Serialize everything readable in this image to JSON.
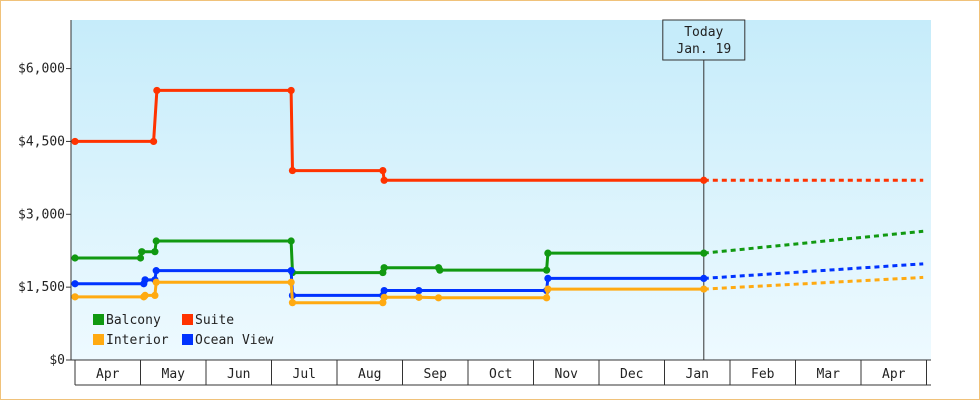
{
  "chart_data": {
    "type": "line",
    "title": "",
    "xlabel": "",
    "ylabel": "",
    "ylim": [
      0,
      7000
    ],
    "yticks": [
      {
        "value": 0,
        "label": "$0"
      },
      {
        "value": 1500,
        "label": "$1,500"
      },
      {
        "value": 3000,
        "label": "$3,000"
      },
      {
        "value": 4500,
        "label": "$4,500"
      },
      {
        "value": 6000,
        "label": "$6,000"
      }
    ],
    "month_labels": [
      "Apr",
      "May",
      "Jun",
      "Jul",
      "Aug",
      "Sep",
      "Oct",
      "Nov",
      "Dec",
      "Jan",
      "Feb",
      "Mar",
      "Apr"
    ],
    "today": {
      "line1": "Today",
      "line2": "Jan. 19",
      "x": 9.6
    },
    "legend": {
      "placement": "bottom-left"
    },
    "series": [
      {
        "name": "Suite",
        "color": "#ff3300",
        "points": [
          [
            0,
            4500
          ],
          [
            1.2,
            4500
          ],
          [
            1.25,
            5550
          ],
          [
            3.3,
            5550
          ],
          [
            3.32,
            3900
          ],
          [
            4.7,
            3900
          ],
          [
            4.72,
            3700
          ],
          [
            9.6,
            3700
          ]
        ],
        "forecast": [
          [
            9.6,
            3700
          ],
          [
            12.95,
            3700
          ]
        ]
      },
      {
        "name": "Balcony",
        "color": "#119911",
        "points": [
          [
            0,
            2100
          ],
          [
            1.0,
            2100
          ],
          [
            1.02,
            2230
          ],
          [
            1.22,
            2230
          ],
          [
            1.24,
            2450
          ],
          [
            3.3,
            2450
          ],
          [
            3.32,
            1800
          ],
          [
            4.7,
            1800
          ],
          [
            4.72,
            1900
          ],
          [
            5.55,
            1900
          ],
          [
            5.57,
            1850
          ],
          [
            7.2,
            1850
          ],
          [
            7.22,
            2200
          ],
          [
            9.6,
            2200
          ]
        ],
        "forecast": [
          [
            9.6,
            2200
          ],
          [
            12.95,
            2650
          ]
        ]
      },
      {
        "name": "Ocean View",
        "color": "#0033ff",
        "points": [
          [
            0,
            1570
          ],
          [
            1.05,
            1570
          ],
          [
            1.07,
            1650
          ],
          [
            1.22,
            1650
          ],
          [
            1.24,
            1840
          ],
          [
            3.3,
            1840
          ],
          [
            3.32,
            1330
          ],
          [
            4.7,
            1330
          ],
          [
            4.72,
            1430
          ],
          [
            5.25,
            1430
          ],
          [
            7.2,
            1430
          ],
          [
            7.22,
            1680
          ],
          [
            9.6,
            1680
          ]
        ],
        "forecast": [
          [
            9.6,
            1680
          ],
          [
            12.95,
            1980
          ]
        ]
      },
      {
        "name": "Interior",
        "color": "#ffaa11",
        "points": [
          [
            0,
            1300
          ],
          [
            1.05,
            1300
          ],
          [
            1.07,
            1330
          ],
          [
            1.22,
            1330
          ],
          [
            1.24,
            1600
          ],
          [
            3.3,
            1600
          ],
          [
            3.32,
            1180
          ],
          [
            4.7,
            1180
          ],
          [
            4.72,
            1290
          ],
          [
            5.25,
            1290
          ],
          [
            5.55,
            1280
          ],
          [
            7.2,
            1280
          ],
          [
            7.22,
            1460
          ],
          [
            9.6,
            1460
          ]
        ],
        "forecast": [
          [
            9.6,
            1460
          ],
          [
            12.95,
            1700
          ]
        ]
      }
    ],
    "legend_order": [
      "Balcony",
      "Suite",
      "Interior",
      "Ocean View"
    ]
  }
}
